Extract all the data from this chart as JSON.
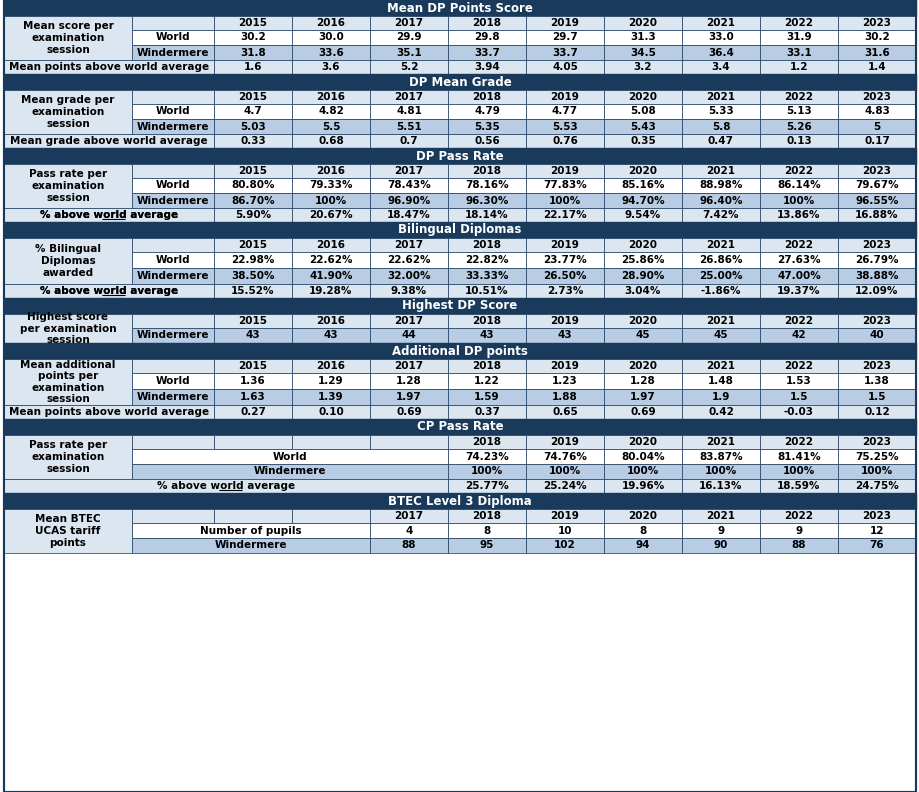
{
  "header_bg": "#1a3a5c",
  "header_fg": "#ffffff",
  "light_bg": "#dce6f1",
  "dark_bg": "#b8cce4",
  "world_bg": "#ffffff",
  "average_bg": "#dce6f1",
  "border_color": "#1a3a5c",
  "sections": [
    {
      "title": "Mean DP Points Score",
      "type": "standard",
      "left_label": "Mean score per\nexamination\nsession",
      "years": [
        "2015",
        "2016",
        "2017",
        "2018",
        "2019",
        "2020",
        "2021",
        "2022",
        "2023"
      ],
      "world": [
        "30.2",
        "30.0",
        "29.9",
        "29.8",
        "29.7",
        "31.3",
        "33.0",
        "31.9",
        "30.2"
      ],
      "windermere": [
        "31.8",
        "33.6",
        "35.1",
        "33.7",
        "33.7",
        "34.5",
        "36.4",
        "33.1",
        "31.6"
      ],
      "average_label": "Mean points above world average",
      "average": [
        "1.6",
        "3.6",
        "5.2",
        "3.94",
        "4.05",
        "3.2",
        "3.4",
        "1.2",
        "1.4"
      ],
      "average_underline": false
    },
    {
      "title": "DP Mean Grade",
      "type": "standard",
      "left_label": "Mean grade per\nexamination\nsession",
      "years": [
        "2015",
        "2016",
        "2017",
        "2018",
        "2019",
        "2020",
        "2021",
        "2022",
        "2023"
      ],
      "world": [
        "4.7",
        "4.82",
        "4.81",
        "4.79",
        "4.77",
        "5.08",
        "5.33",
        "5.13",
        "4.83"
      ],
      "windermere": [
        "5.03",
        "5.5",
        "5.51",
        "5.35",
        "5.53",
        "5.43",
        "5.8",
        "5.26",
        "5"
      ],
      "average_label": "Mean grade above world average",
      "average": [
        "0.33",
        "0.68",
        "0.7",
        "0.56",
        "0.76",
        "0.35",
        "0.47",
        "0.13",
        "0.17"
      ],
      "average_underline": false
    },
    {
      "title": "DP Pass Rate",
      "type": "standard",
      "left_label": "Pass rate per\nexamination\nsession",
      "years": [
        "2015",
        "2016",
        "2017",
        "2018",
        "2019",
        "2020",
        "2021",
        "2022",
        "2023"
      ],
      "world": [
        "80.80%",
        "79.33%",
        "78.43%",
        "78.16%",
        "77.83%",
        "85.16%",
        "88.98%",
        "86.14%",
        "79.67%"
      ],
      "windermere": [
        "86.70%",
        "100%",
        "96.90%",
        "96.30%",
        "100%",
        "94.70%",
        "96.40%",
        "100%",
        "96.55%"
      ],
      "average_label": "% above world average",
      "average": [
        "5.90%",
        "20.67%",
        "18.47%",
        "18.14%",
        "22.17%",
        "9.54%",
        "7.42%",
        "13.86%",
        "16.88%"
      ],
      "average_underline": true
    },
    {
      "title": "Bilingual Diplomas",
      "type": "standard",
      "left_label": "% Bilingual\nDiplomas\nawarded",
      "years": [
        "2015",
        "2016",
        "2017",
        "2018",
        "2019",
        "2020",
        "2021",
        "2022",
        "2023"
      ],
      "world": [
        "22.98%",
        "22.62%",
        "22.62%",
        "22.82%",
        "23.77%",
        "25.86%",
        "26.86%",
        "27.63%",
        "26.79%"
      ],
      "windermere": [
        "38.50%",
        "41.90%",
        "32.00%",
        "33.33%",
        "26.50%",
        "28.90%",
        "25.00%",
        "47.00%",
        "38.88%"
      ],
      "average_label": "% above world average",
      "average": [
        "15.52%",
        "19.28%",
        "9.38%",
        "10.51%",
        "2.73%",
        "3.04%",
        "-1.86%",
        "19.37%",
        "12.09%"
      ],
      "average_underline": true
    },
    {
      "title": "Highest DP Score",
      "type": "windermere_only",
      "left_label": "Highest score\nper examination\nsession",
      "years": [
        "2015",
        "2016",
        "2017",
        "2018",
        "2019",
        "2020",
        "2021",
        "2022",
        "2023"
      ],
      "windermere": [
        "43",
        "43",
        "44",
        "43",
        "43",
        "45",
        "45",
        "42",
        "40"
      ]
    },
    {
      "title": "Additional DP points",
      "type": "standard",
      "left_label": "Mean additional\npoints per\nexamination\nsession",
      "years": [
        "2015",
        "2016",
        "2017",
        "2018",
        "2019",
        "2020",
        "2021",
        "2022",
        "2023"
      ],
      "world": [
        "1.36",
        "1.29",
        "1.28",
        "1.22",
        "1.23",
        "1.28",
        "1.48",
        "1.53",
        "1.38"
      ],
      "windermere": [
        "1.63",
        "1.39",
        "1.97",
        "1.59",
        "1.88",
        "1.97",
        "1.9",
        "1.5",
        "1.5"
      ],
      "average_label": "Mean points above world average",
      "average": [
        "0.27",
        "0.10",
        "0.69",
        "0.37",
        "0.65",
        "0.69",
        "0.42",
        "-0.03",
        "0.12"
      ],
      "average_underline": false
    },
    {
      "title": "CP Pass Rate",
      "type": "cp",
      "left_label": "Pass rate per\nexamination\nsession",
      "years": [
        "",
        "",
        "",
        "2018",
        "2019",
        "2020",
        "2021",
        "2022",
        "2023"
      ],
      "world": [
        "",
        "",
        "",
        "74.23%",
        "74.76%",
        "80.04%",
        "83.87%",
        "81.41%",
        "75.25%"
      ],
      "windermere": [
        "",
        "",
        "",
        "100%",
        "100%",
        "100%",
        "100%",
        "100%",
        "100%"
      ],
      "average_label": "% above world average",
      "average": [
        "",
        "",
        "",
        "25.77%",
        "25.24%",
        "19.96%",
        "16.13%",
        "18.59%",
        "24.75%"
      ],
      "average_underline": true,
      "empty_cols": 3
    },
    {
      "title": "BTEC Level 3 Diploma",
      "type": "btec",
      "left_label": "Mean BTEC\nUCAS tariff\npoints",
      "years": [
        "",
        "",
        "2017",
        "2018",
        "2019",
        "2020",
        "2021",
        "2022",
        "2023"
      ],
      "pupils": [
        "",
        "",
        "4",
        "8",
        "10",
        "8",
        "9",
        "9",
        "12"
      ],
      "windermere": [
        "",
        "",
        "88",
        "95",
        "102",
        "94",
        "90",
        "88",
        "76"
      ],
      "empty_cols": 2
    }
  ]
}
